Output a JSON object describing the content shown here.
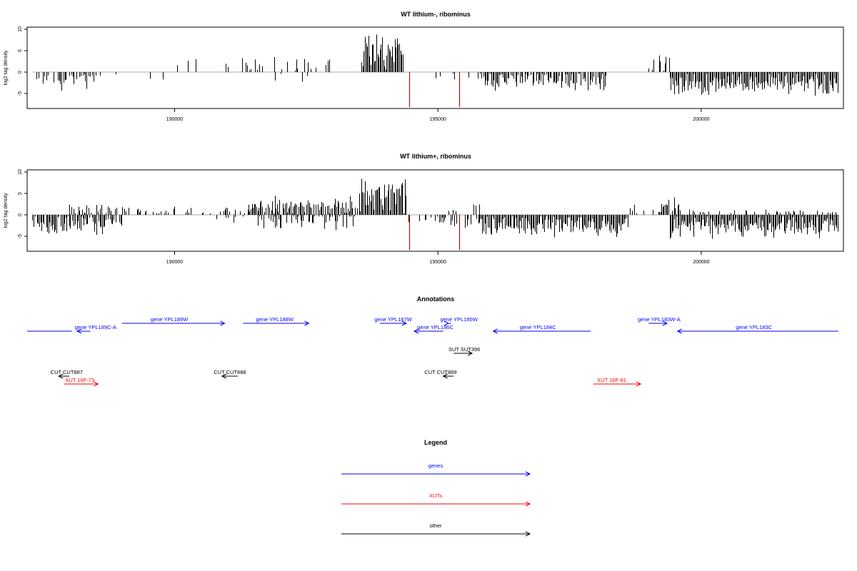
{
  "chart_data": [
    {
      "type": "bar",
      "title": "WT lithium-, ribominus",
      "ylabel": "log2 tag density",
      "xlim": [
        187200,
        202700
      ],
      "ylim": [
        -8.5,
        10.5
      ],
      "y_ticks": [
        "-5",
        "0",
        "5",
        "10"
      ],
      "x_ticks": [
        "190000",
        "195000",
        "200000"
      ],
      "highlight_color": "#cc0000",
      "highlights": [
        {
          "x": 194450,
          "y": -8.2
        },
        {
          "x": 195400,
          "y": -8.2
        }
      ],
      "density_profile": [
        {
          "from": 187350,
          "to": 188600,
          "sign": -1,
          "mean": 2.2,
          "spread": 2.5,
          "density": 0.55
        },
        {
          "from": 188600,
          "to": 190000,
          "sign": -1,
          "mean": 1.5,
          "spread": 1.8,
          "density": 0.08
        },
        {
          "from": 189900,
          "to": 191500,
          "sign": 1,
          "mean": 2.0,
          "spread": 1.6,
          "density": 0.08
        },
        {
          "from": 191200,
          "to": 193000,
          "sign": 1,
          "mean": 2.5,
          "spread": 2.0,
          "density": 0.25
        },
        {
          "from": 191600,
          "to": 192900,
          "sign": -1,
          "mean": 1.5,
          "spread": 2.5,
          "density": 0.12
        },
        {
          "from": 193000,
          "to": 193500,
          "sign": 1,
          "mean": 1.2,
          "spread": 1.2,
          "density": 0.06
        },
        {
          "from": 193550,
          "to": 194350,
          "sign": 1,
          "mean": 5.0,
          "spread": 4.5,
          "density": 1.0
        },
        {
          "from": 194500,
          "to": 195800,
          "sign": -1,
          "mean": 1.2,
          "spread": 1.0,
          "density": 0.06
        },
        {
          "from": 195800,
          "to": 198200,
          "sign": -1,
          "mean": 2.2,
          "spread": 3.0,
          "density": 0.8
        },
        {
          "from": 198200,
          "to": 199000,
          "sign": -1,
          "mean": 1.0,
          "spread": 1.0,
          "density": 0.06
        },
        {
          "from": 199000,
          "to": 199400,
          "sign": 1,
          "mean": 2.2,
          "spread": 2.0,
          "density": 0.6
        },
        {
          "from": 199400,
          "to": 202600,
          "sign": -1,
          "mean": 3.0,
          "spread": 3.0,
          "density": 1.0
        }
      ]
    },
    {
      "type": "bar",
      "title": "WT lithium+, ribominus",
      "ylabel": "log2 tag density",
      "xlim": [
        187200,
        202700
      ],
      "ylim": [
        -8.5,
        10.5
      ],
      "y_ticks": [
        "-5",
        "0",
        "5",
        "10"
      ],
      "x_ticks": [
        "190000",
        "195000",
        "200000"
      ],
      "highlight_color": "#cc0000",
      "highlights": [
        {
          "x": 194450,
          "y": -8.2
        },
        {
          "x": 195400,
          "y": -8.2
        }
      ],
      "density_profile": [
        {
          "from": 187300,
          "to": 189000,
          "sign": -1,
          "mean": 2.5,
          "spread": 3.0,
          "density": 0.85
        },
        {
          "from": 188000,
          "to": 189000,
          "sign": 1,
          "mean": 1.5,
          "spread": 2.0,
          "density": 0.4
        },
        {
          "from": 189000,
          "to": 191400,
          "sign": 1,
          "mean": 1.0,
          "spread": 1.5,
          "density": 0.3
        },
        {
          "from": 190800,
          "to": 191500,
          "sign": -1,
          "mean": 1.0,
          "spread": 1.5,
          "density": 0.25
        },
        {
          "from": 191400,
          "to": 193500,
          "sign": 1,
          "mean": 2.0,
          "spread": 3.0,
          "density": 0.85
        },
        {
          "from": 191500,
          "to": 193500,
          "sign": -1,
          "mean": 1.8,
          "spread": 2.5,
          "density": 0.5
        },
        {
          "from": 193500,
          "to": 194400,
          "sign": 1,
          "mean": 5.0,
          "spread": 4.5,
          "density": 1.0
        },
        {
          "from": 194400,
          "to": 195800,
          "sign": -1,
          "mean": 2.0,
          "spread": 2.0,
          "density": 0.35
        },
        {
          "from": 195200,
          "to": 195800,
          "sign": 1,
          "mean": 1.5,
          "spread": 2.5,
          "density": 0.2
        },
        {
          "from": 195800,
          "to": 198600,
          "sign": -1,
          "mean": 2.8,
          "spread": 3.5,
          "density": 1.0
        },
        {
          "from": 198400,
          "to": 199200,
          "sign": 1,
          "mean": 1.5,
          "spread": 1.5,
          "density": 0.3
        },
        {
          "from": 199200,
          "to": 199600,
          "sign": 1,
          "mean": 2.5,
          "spread": 3.0,
          "density": 0.8
        },
        {
          "from": 199400,
          "to": 202600,
          "sign": -1,
          "mean": 3.0,
          "spread": 3.0,
          "density": 1.0
        },
        {
          "from": 199600,
          "to": 202600,
          "sign": 1,
          "mean": 0.8,
          "spread": 0.8,
          "density": 0.2
        }
      ]
    }
  ],
  "annotations": {
    "title": "Annotations",
    "features": [
      {
        "label": "",
        "color": "#0000ff",
        "x1": 187200,
        "x2": 188050,
        "row": 0,
        "arrow": "none"
      },
      {
        "label": "gene YPL189C-A",
        "color": "#0000ff",
        "x1": 188400,
        "x2": 188150,
        "row": 0,
        "arrow": "left",
        "label_x": 188500
      },
      {
        "label": "gene YPL189W",
        "color": "#0000ff",
        "x1": 189000,
        "x2": 190950,
        "row": 1,
        "arrow": "right",
        "label_x": 189900
      },
      {
        "label": "gene YPL188W",
        "color": "#0000ff",
        "x1": 191300,
        "x2": 192550,
        "row": 1,
        "arrow": "right",
        "label_x": 191900
      },
      {
        "label": "gene YPL187W",
        "color": "#0000ff",
        "x1": 193900,
        "x2": 194400,
        "row": 1,
        "arrow": "right",
        "label_x": 194150
      },
      {
        "label": "gene YPL186C",
        "color": "#0000ff",
        "x1": 195100,
        "x2": 194550,
        "row": 0,
        "arrow": "left",
        "label_x": 194950
      },
      {
        "label": "gene YPL185W",
        "color": "#0000ff",
        "x1": 195250,
        "x2": 195200,
        "row": 1,
        "arrow": "right",
        "label_x": 195400
      },
      {
        "label": "gene YPL184C",
        "color": "#0000ff",
        "x1": 197900,
        "x2": 196050,
        "row": 0,
        "arrow": "left",
        "label_x": 196900
      },
      {
        "label": "gene YPL183W-A",
        "color": "#0000ff",
        "x1": 199000,
        "x2": 199350,
        "row": 1,
        "arrow": "right",
        "label_x": 199200
      },
      {
        "label": "gene YPL183C",
        "color": "#0000ff",
        "x1": 202600,
        "x2": 199550,
        "row": 0,
        "arrow": "left",
        "label_x": 201000
      },
      {
        "label": "SUT SUT396",
        "color": "#000000",
        "x1": 195300,
        "x2": 195650,
        "row": 2,
        "arrow": "right",
        "label_x": 195500
      },
      {
        "label": "CUT CUT887",
        "color": "#000000",
        "x1": 188000,
        "x2": 187800,
        "row": 3,
        "arrow": "left",
        "label_x": 187950
      },
      {
        "label": "XUT 16F-73",
        "color": "#ff0000",
        "x1": 187900,
        "x2": 188550,
        "row": 4,
        "arrow": "right",
        "label_x": 188200
      },
      {
        "label": "CUT CUT888",
        "color": "#000000",
        "x1": 191200,
        "x2": 190900,
        "row": 3,
        "arrow": "left",
        "label_x": 191050
      },
      {
        "label": "CUT CUT889",
        "color": "#000000",
        "x1": 195300,
        "x2": 195100,
        "row": 3,
        "arrow": "left",
        "label_x": 195050
      },
      {
        "label": "XUT 16F-81",
        "color": "#ff0000",
        "x1": 197950,
        "x2": 198850,
        "row": 4,
        "arrow": "right",
        "label_x": 198300
      }
    ]
  },
  "legend": {
    "title": "Legend",
    "items": [
      {
        "label": "genes",
        "color": "#0000ff"
      },
      {
        "label": "XUTs",
        "color": "#ff0000"
      },
      {
        "label": "other",
        "color": "#000000"
      }
    ]
  }
}
